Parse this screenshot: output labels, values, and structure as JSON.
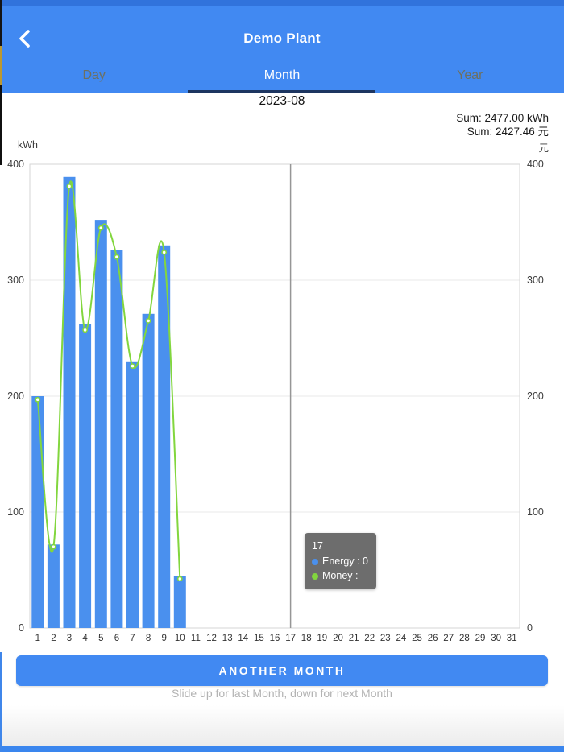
{
  "header": {
    "title": "Demo Plant",
    "tabs": [
      {
        "label": "Day",
        "active": false
      },
      {
        "label": "Month",
        "active": true
      },
      {
        "label": "Year",
        "active": false
      }
    ]
  },
  "period": {
    "value": "2023-08"
  },
  "summary": {
    "energy": "Sum: 2477.00 kWh",
    "money": "Sum: 2427.46 元"
  },
  "chart_data": {
    "type": "bar",
    "title": "",
    "x": [
      1,
      2,
      3,
      4,
      5,
      6,
      7,
      8,
      9,
      10,
      11,
      12,
      13,
      14,
      15,
      16,
      17,
      18,
      19,
      20,
      21,
      22,
      23,
      24,
      25,
      26,
      27,
      28,
      29,
      30,
      31
    ],
    "series": [
      {
        "name": "Energy",
        "type": "bar",
        "unit": "kWh",
        "color": "#4a90ee",
        "values": [
          200,
          72,
          389,
          262,
          352,
          326,
          230,
          271,
          330,
          45,
          0,
          0,
          0,
          0,
          0,
          0,
          0,
          0,
          0,
          0,
          0,
          0,
          0,
          0,
          0,
          0,
          0,
          0,
          0,
          0,
          0
        ]
      },
      {
        "name": "Money",
        "type": "line",
        "unit": "元",
        "color": "#82d63e",
        "values": [
          197,
          70,
          381,
          257,
          345,
          320,
          226,
          265,
          324,
          42.46,
          null,
          null,
          null,
          null,
          null,
          null,
          null,
          null,
          null,
          null,
          null,
          null,
          null,
          null,
          null,
          null,
          null,
          null,
          null,
          null,
          null
        ]
      }
    ],
    "left_axis": {
      "label": "kWh",
      "ticks": [
        0,
        100,
        200,
        300,
        400
      ],
      "range": [
        0,
        400
      ]
    },
    "right_axis": {
      "label": "元",
      "ticks": [
        0,
        100,
        200,
        300,
        400
      ],
      "range": [
        0,
        400
      ]
    },
    "grid": true,
    "legend": "none",
    "indicator_day": 17
  },
  "tooltip": {
    "title": "17",
    "rows": [
      {
        "series": "Energy",
        "label": "Energy : 0"
      },
      {
        "series": "Money",
        "label": "Money : -"
      }
    ]
  },
  "footer": {
    "button_label": "ANOTHER MONTH",
    "hint": "Slide up for last Month, down for next Month"
  },
  "colors": {
    "accent_blue": "#4189f2",
    "bar_blue": "#4a90ee",
    "line_green": "#82d63e",
    "tab_inactive": "#6d7061",
    "tab_indicator": "#1c3560",
    "tooltip_bg": "#676767"
  }
}
